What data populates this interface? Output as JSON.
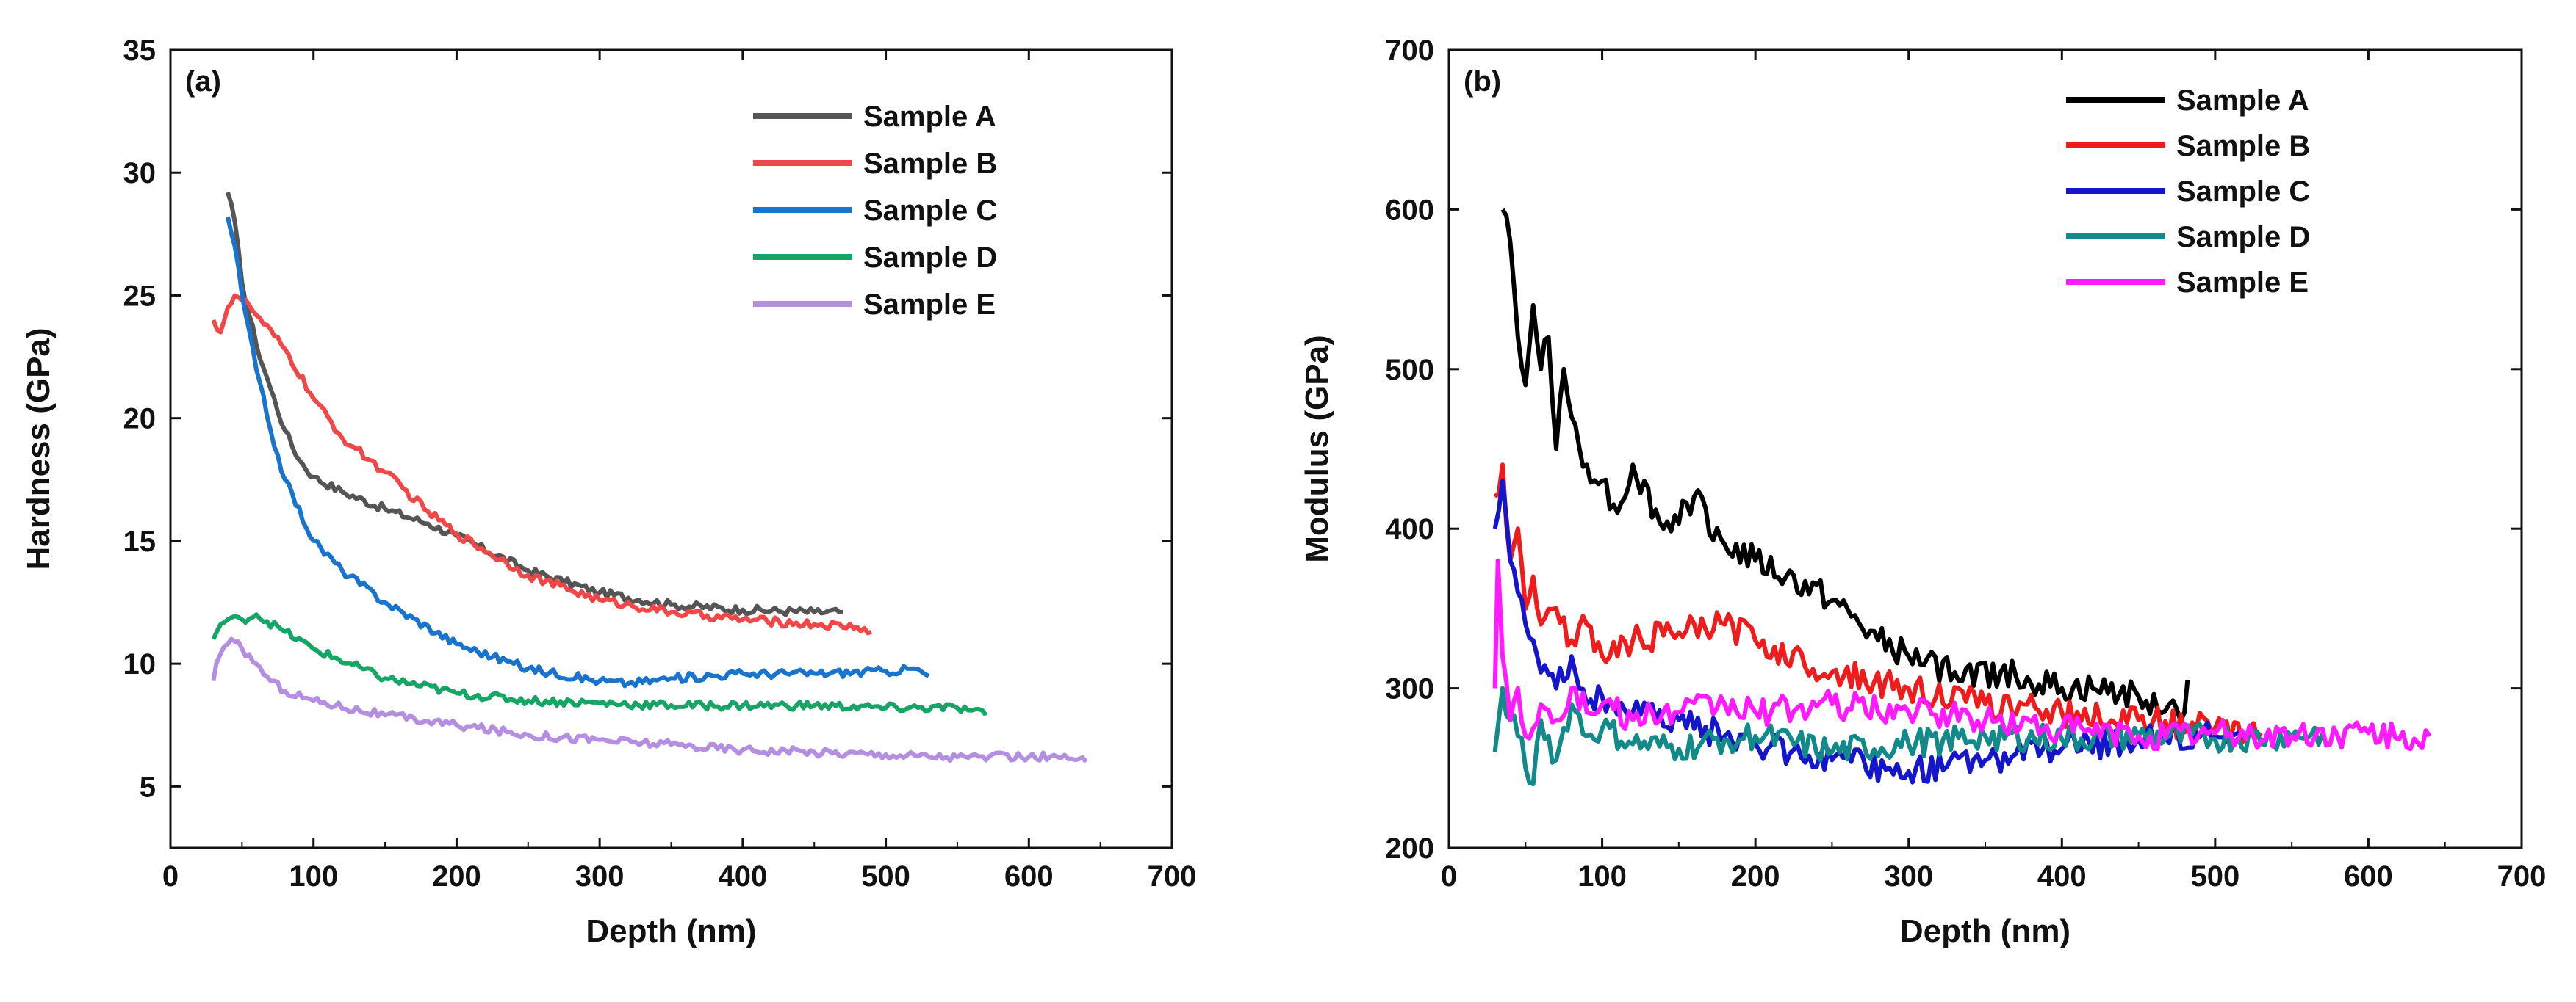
{
  "chart_data": [
    {
      "type": "line",
      "panel_label": "(a)",
      "xlabel": "Depth (nm)",
      "ylabel": "Hardness (GPa)",
      "xlim": [
        0,
        700
      ],
      "ylim": [
        2.5,
        35
      ],
      "xticks": [
        0,
        100,
        200,
        300,
        400,
        500,
        600,
        700
      ],
      "xtick_labels": [
        "0",
        "100",
        "200",
        "300",
        "400",
        "500",
        "600",
        "700"
      ],
      "yticks": [
        5,
        10,
        15,
        20,
        25,
        30,
        35
      ],
      "ytick_labels": [
        "5",
        "10",
        "15",
        "20",
        "25",
        "30",
        "35"
      ],
      "legend_position": "top-right",
      "series": [
        {
          "name": "Sample A",
          "color": "#555555",
          "x": [
            40,
            45,
            50,
            60,
            70,
            80,
            90,
            100,
            120,
            150,
            180,
            200,
            250,
            300,
            350,
            400,
            450,
            470
          ],
          "y": [
            29.2,
            28.0,
            25.5,
            23.0,
            21.2,
            19.5,
            18.3,
            17.6,
            17.0,
            16.3,
            15.7,
            15.2,
            13.8,
            12.9,
            12.4,
            12.2,
            12.1,
            12.1
          ]
        },
        {
          "name": "Sample B",
          "color": "#f04848",
          "x": [
            30,
            35,
            40,
            45,
            50,
            55,
            60,
            80,
            100,
            120,
            150,
            180,
            200,
            250,
            300,
            350,
            400,
            450,
            480,
            490
          ],
          "y": [
            24.0,
            23.5,
            24.5,
            25.0,
            24.8,
            24.6,
            24.2,
            22.8,
            20.8,
            19.2,
            17.8,
            16.2,
            15.3,
            13.6,
            12.6,
            12.1,
            11.8,
            11.6,
            11.5,
            11.3
          ]
        },
        {
          "name": "Sample C",
          "color": "#1874cd",
          "x": [
            40,
            45,
            50,
            60,
            70,
            80,
            100,
            120,
            150,
            200,
            250,
            300,
            320,
            350,
            400,
            450,
            500,
            520,
            530
          ],
          "y": [
            28.2,
            27.0,
            25.0,
            22.0,
            19.5,
            17.5,
            15.0,
            13.8,
            12.5,
            10.8,
            9.8,
            9.3,
            9.2,
            9.4,
            9.6,
            9.6,
            9.7,
            9.8,
            9.5
          ]
        },
        {
          "name": "Sample D",
          "color": "#17a566",
          "x": [
            30,
            35,
            40,
            50,
            60,
            80,
            100,
            150,
            200,
            250,
            300,
            350,
            400,
            450,
            500,
            550,
            560,
            570
          ],
          "y": [
            11.0,
            11.6,
            11.8,
            11.8,
            12.0,
            11.3,
            10.6,
            9.4,
            8.8,
            8.5,
            8.4,
            8.3,
            8.3,
            8.3,
            8.2,
            8.2,
            8.1,
            7.9
          ]
        },
        {
          "name": "Sample E",
          "color": "#b48ee0",
          "x": [
            30,
            32,
            35,
            40,
            45,
            50,
            60,
            70,
            80,
            100,
            150,
            200,
            250,
            300,
            350,
            400,
            450,
            500,
            550,
            600,
            620,
            640
          ],
          "y": [
            9.3,
            10.0,
            10.4,
            10.8,
            10.9,
            10.6,
            10.0,
            9.3,
            8.9,
            8.5,
            7.9,
            7.5,
            7.1,
            6.9,
            6.7,
            6.5,
            6.4,
            6.3,
            6.2,
            6.2,
            6.2,
            6.0
          ]
        }
      ]
    },
    {
      "type": "line",
      "panel_label": "(b)",
      "xlabel": "Depth (nm)",
      "ylabel": "Modulus (GPa)",
      "xlim": [
        0,
        700
      ],
      "ylim": [
        200,
        700
      ],
      "xticks": [
        0,
        100,
        200,
        300,
        400,
        500,
        600,
        700
      ],
      "xtick_labels": [
        "0",
        "100",
        "200",
        "300",
        "400",
        "500",
        "600",
        "700"
      ],
      "yticks": [
        200,
        300,
        400,
        500,
        600,
        700
      ],
      "ytick_labels": [
        "200",
        "300",
        "400",
        "500",
        "600",
        "700"
      ],
      "legend_position": "top-right",
      "series": [
        {
          "name": "Sample A",
          "color": "#000000",
          "x": [
            35,
            40,
            45,
            50,
            55,
            60,
            65,
            70,
            75,
            80,
            90,
            100,
            110,
            120,
            140,
            160,
            180,
            200,
            220,
            250,
            280,
            300,
            330,
            360,
            400,
            420,
            450,
            470,
            480,
            482
          ],
          "y": [
            600,
            580,
            520,
            490,
            540,
            500,
            520,
            450,
            500,
            470,
            440,
            430,
            410,
            440,
            400,
            420,
            390,
            380,
            370,
            355,
            330,
            320,
            310,
            310,
            300,
            300,
            295,
            290,
            285,
            305
          ]
        },
        {
          "name": "Sample B",
          "color": "#ee1c1c",
          "x": [
            30,
            35,
            40,
            45,
            50,
            55,
            60,
            70,
            80,
            90,
            100,
            120,
            150,
            180,
            200,
            250,
            300,
            350,
            400,
            450,
            500,
            520,
            530
          ],
          "y": [
            420,
            440,
            380,
            400,
            350,
            370,
            340,
            350,
            330,
            340,
            320,
            330,
            335,
            340,
            330,
            310,
            300,
            290,
            285,
            280,
            275,
            270,
            272
          ]
        },
        {
          "name": "Sample C",
          "color": "#1515cc",
          "x": [
            30,
            35,
            40,
            45,
            50,
            55,
            60,
            70,
            80,
            90,
            100,
            120,
            150,
            180,
            200,
            250,
            300,
            350,
            400,
            450,
            500,
            520
          ],
          "y": [
            400,
            430,
            380,
            360,
            340,
            330,
            310,
            300,
            320,
            290,
            295,
            285,
            280,
            270,
            265,
            255,
            248,
            255,
            262,
            268,
            270,
            268
          ]
        },
        {
          "name": "Sample D",
          "color": "#128a8a",
          "x": [
            30,
            35,
            40,
            45,
            50,
            55,
            60,
            70,
            80,
            90,
            100,
            120,
            150,
            180,
            200,
            250,
            300,
            350,
            400,
            450,
            500,
            550,
            570
          ],
          "y": [
            260,
            300,
            280,
            270,
            250,
            240,
            280,
            255,
            290,
            270,
            275,
            265,
            262,
            268,
            270,
            260,
            265,
            270,
            268,
            270,
            268,
            270,
            272
          ]
        },
        {
          "name": "Sample E",
          "color": "#ff1aff",
          "x": [
            30,
            32,
            35,
            40,
            45,
            50,
            60,
            70,
            80,
            90,
            100,
            120,
            150,
            180,
            200,
            250,
            300,
            350,
            400,
            450,
            500,
            550,
            600,
            620,
            640
          ],
          "y": [
            300,
            380,
            320,
            280,
            300,
            270,
            290,
            280,
            300,
            285,
            290,
            280,
            285,
            290,
            285,
            290,
            285,
            280,
            275,
            270,
            272,
            270,
            272,
            268,
            270
          ]
        }
      ]
    }
  ]
}
